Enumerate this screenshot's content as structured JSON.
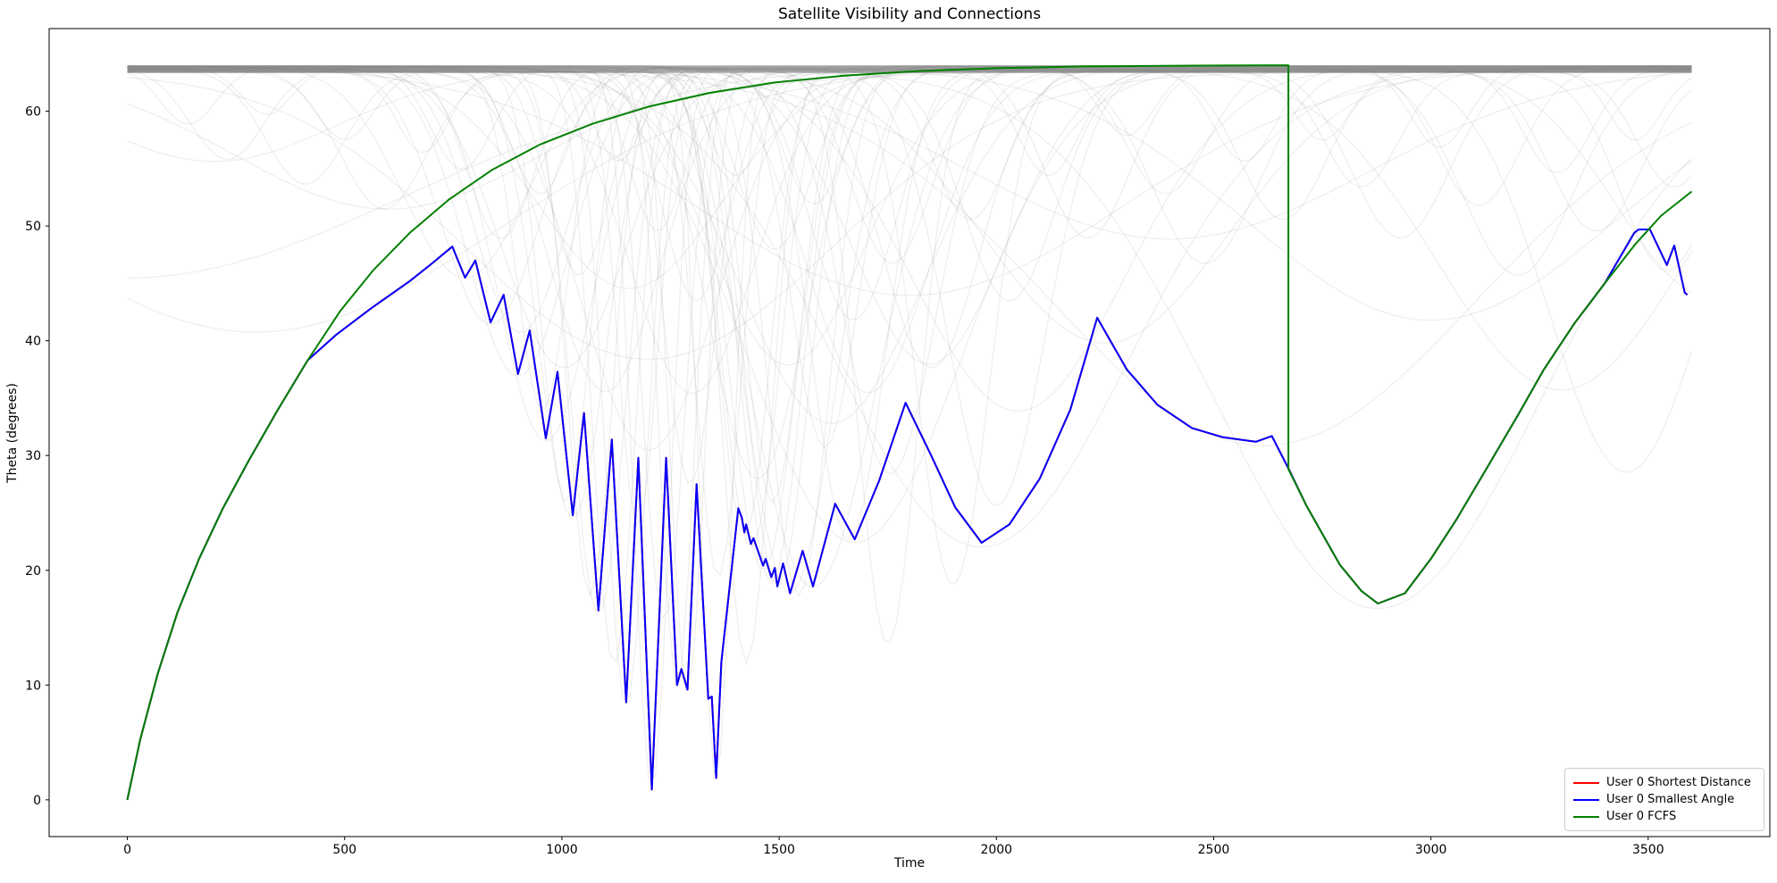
{
  "figure": {
    "title": "Satellite Visibility and Connections"
  },
  "axes": {
    "xlabel": "Time",
    "ylabel": "Theta (degrees)",
    "x_ticks": [
      0,
      500,
      1000,
      1500,
      2000,
      2500,
      3000,
      3500
    ],
    "y_ticks": [
      0,
      10,
      20,
      30,
      40,
      50,
      60
    ],
    "x_range": [
      -180,
      3780
    ],
    "y_range": [
      -3.2,
      67.2
    ]
  },
  "legend": {
    "items": [
      {
        "label": "User 0 Shortest Distance",
        "color": "#ff0000"
      },
      {
        "label": "User 0 Smallest Angle",
        "color": "#0000ff"
      },
      {
        "label": "User 0 FCFS",
        "color": "#008000"
      }
    ]
  },
  "chart_data": {
    "type": "line",
    "title": "Satellite Visibility and Connections",
    "xlabel": "Time",
    "ylabel": "Theta (degrees)",
    "xlim": [
      -180,
      3780
    ],
    "ylim": [
      -3.2,
      67.2
    ],
    "grid": false,
    "legend_position": "lower right",
    "series": [
      {
        "name": "User 0 Shortest Distance",
        "color": "#ff0000",
        "width": 2,
        "points_ref": "User 0 Smallest Angle",
        "note": "coincides exactly with the Smallest Angle curve and is hidden beneath it"
      },
      {
        "name": "User 0 Smallest Angle",
        "color": "#0000ff",
        "width": 2,
        "points": [
          [
            0,
            0
          ],
          [
            30,
            5.3
          ],
          [
            70,
            11
          ],
          [
            115,
            16.3
          ],
          [
            165,
            21
          ],
          [
            220,
            25.4
          ],
          [
            280,
            29.6
          ],
          [
            345,
            33.9
          ],
          [
            415,
            38.3
          ],
          [
            480,
            40.5
          ],
          [
            560,
            42.8
          ],
          [
            650,
            45.2
          ],
          [
            700,
            46.7
          ],
          [
            748,
            48.2
          ],
          [
            777,
            45.5
          ],
          [
            801,
            47.0
          ],
          [
            836,
            41.6
          ],
          [
            866,
            44.0
          ],
          [
            899,
            37.1
          ],
          [
            926,
            40.9
          ],
          [
            963,
            31.5
          ],
          [
            990,
            37.3
          ],
          [
            1025,
            24.8
          ],
          [
            1051,
            33.7
          ],
          [
            1084,
            16.5
          ],
          [
            1115,
            31.4
          ],
          [
            1148,
            8.5
          ],
          [
            1176,
            29.8
          ],
          [
            1207,
            0.9
          ],
          [
            1240,
            29.8
          ],
          [
            1265,
            10.0
          ],
          [
            1275,
            11.4
          ],
          [
            1289,
            9.6
          ],
          [
            1310,
            27.5
          ],
          [
            1337,
            8.8
          ],
          [
            1345,
            9.0
          ],
          [
            1355,
            1.9
          ],
          [
            1367,
            12.0
          ],
          [
            1406,
            25.4
          ],
          [
            1414,
            24.6
          ],
          [
            1420,
            23.3
          ],
          [
            1424,
            24.0
          ],
          [
            1435,
            22.3
          ],
          [
            1441,
            22.8
          ],
          [
            1463,
            20.4
          ],
          [
            1469,
            21.0
          ],
          [
            1482,
            19.4
          ],
          [
            1490,
            20.2
          ],
          [
            1496,
            18.6
          ],
          [
            1509,
            20.6
          ],
          [
            1525,
            18.0
          ],
          [
            1554,
            21.7
          ],
          [
            1578,
            18.6
          ],
          [
            1629,
            25.8
          ],
          [
            1674,
            22.7
          ],
          [
            1730,
            27.8
          ],
          [
            1791,
            34.6
          ],
          [
            1850,
            30.0
          ],
          [
            1905,
            25.5
          ],
          [
            1966,
            22.4
          ],
          [
            2030,
            24.0
          ],
          [
            2100,
            28.0
          ],
          [
            2170,
            34.0
          ],
          [
            2232,
            42.0
          ],
          [
            2300,
            37.5
          ],
          [
            2371,
            34.4
          ],
          [
            2450,
            32.4
          ],
          [
            2520,
            31.6
          ],
          [
            2597,
            31.2
          ],
          [
            2634,
            31.7
          ],
          [
            2673,
            28.8
          ],
          [
            2714,
            25.6
          ],
          [
            2790,
            20.5
          ],
          [
            2840,
            18.2
          ],
          [
            2878,
            17.1
          ],
          [
            2940,
            18.0
          ],
          [
            3000,
            21.0
          ],
          [
            3060,
            24.5
          ],
          [
            3130,
            29.0
          ],
          [
            3200,
            33.5
          ],
          [
            3260,
            37.5
          ],
          [
            3330,
            41.5
          ],
          [
            3400,
            45.0
          ],
          [
            3468,
            49.4
          ],
          [
            3478,
            49.7
          ],
          [
            3504,
            49.7
          ],
          [
            3543,
            46.6
          ],
          [
            3560,
            48.3
          ],
          [
            3584,
            44.2
          ],
          [
            3590,
            44.0
          ]
        ]
      },
      {
        "name": "User 0 FCFS",
        "color": "#008000",
        "width": 2,
        "points": [
          [
            0,
            0
          ],
          [
            30,
            5.3
          ],
          [
            70,
            11
          ],
          [
            115,
            16.3
          ],
          [
            165,
            21
          ],
          [
            220,
            25.4
          ],
          [
            280,
            29.6
          ],
          [
            345,
            33.9
          ],
          [
            415,
            38.3
          ],
          [
            490,
            42.6
          ],
          [
            565,
            46.1
          ],
          [
            650,
            49.4
          ],
          [
            740,
            52.3
          ],
          [
            840,
            54.9
          ],
          [
            950,
            57.1
          ],
          [
            1070,
            58.9
          ],
          [
            1200,
            60.4
          ],
          [
            1340,
            61.6
          ],
          [
            1490,
            62.5
          ],
          [
            1650,
            63.1
          ],
          [
            1820,
            63.5
          ],
          [
            2000,
            63.75
          ],
          [
            2200,
            63.9
          ],
          [
            2450,
            63.97
          ],
          [
            2672,
            64.0
          ],
          [
            2672,
            28.8
          ],
          [
            2714,
            25.6
          ],
          [
            2790,
            20.5
          ],
          [
            2840,
            18.2
          ],
          [
            2878,
            17.1
          ],
          [
            2940,
            18.0
          ],
          [
            3000,
            21.0
          ],
          [
            3060,
            24.5
          ],
          [
            3130,
            29.0
          ],
          [
            3200,
            33.5
          ],
          [
            3260,
            37.5
          ],
          [
            3330,
            41.5
          ],
          [
            3400,
            45.0
          ],
          [
            3470,
            48.4
          ],
          [
            3530,
            50.9
          ],
          [
            3600,
            53.0
          ]
        ]
      }
    ],
    "background_satellites": {
      "description": "light gray satellite visibility curves; theta(t) = ceiling - depth * exp(-((t-center)/width)^2), t in [0,3600]",
      "ceiling": 63.9,
      "color": "rgba(120,120,120,0.12)",
      "line_width": 1.3,
      "curves_center_depth_width": [
        [
          295,
          23.2,
          800
        ],
        [
          777,
          18.4,
          200
        ],
        [
          836,
          22.4,
          160
        ],
        [
          899,
          26.8,
          165
        ],
        [
          963,
          32.4,
          155
        ],
        [
          1025,
          39.1,
          112
        ],
        [
          1084,
          47.4,
          90
        ],
        [
          1148,
          55.4,
          68
        ],
        [
          1207,
          63.0,
          60
        ],
        [
          1265,
          53.9,
          58
        ],
        [
          1289,
          54.3,
          58
        ],
        [
          1355,
          62.0,
          53
        ],
        [
          1420,
          40.6,
          85
        ],
        [
          1435,
          41.6,
          95
        ],
        [
          1463,
          43.5,
          110
        ],
        [
          1482,
          44.5,
          100
        ],
        [
          1496,
          45.3,
          105
        ],
        [
          1525,
          45.9,
          150
        ],
        [
          1578,
          45.3,
          210
        ],
        [
          1674,
          41.3,
          350
        ],
        [
          1966,
          41.6,
          480
        ],
        [
          2615,
          32.7,
          700
        ],
        [
          2878,
          46.8,
          535
        ],
        [
          3543,
          17.3,
          150
        ],
        [
          3640,
          20.1,
          300
        ],
        [
          140,
          5,
          90
        ],
        [
          230,
          8,
          120
        ],
        [
          320,
          4,
          80
        ],
        [
          410,
          10,
          130
        ],
        [
          500,
          6,
          95
        ],
        [
          590,
          12,
          140
        ],
        [
          680,
          7,
          85
        ],
        [
          770,
          9,
          100
        ],
        [
          860,
          15,
          110
        ],
        [
          950,
          11,
          95
        ],
        [
          1040,
          18,
          100
        ],
        [
          1130,
          8,
          80
        ],
        [
          1220,
          14,
          90
        ],
        [
          1310,
          20,
          110
        ],
        [
          1400,
          9,
          85
        ],
        [
          1490,
          16,
          120
        ],
        [
          1580,
          12,
          100
        ],
        [
          1670,
          22,
          140
        ],
        [
          1760,
          17,
          130
        ],
        [
          1850,
          26,
          160
        ],
        [
          1940,
          13,
          120
        ],
        [
          2030,
          20,
          150
        ],
        [
          2120,
          9,
          100
        ],
        [
          2210,
          15,
          140
        ],
        [
          2300,
          6,
          90
        ],
        [
          2390,
          11,
          130
        ],
        [
          2480,
          17,
          170
        ],
        [
          2570,
          8,
          100
        ],
        [
          2660,
          13,
          140
        ],
        [
          2750,
          6,
          90
        ],
        [
          2840,
          10,
          120
        ],
        [
          2930,
          15,
          160
        ],
        [
          3020,
          7,
          95
        ],
        [
          3110,
          12,
          135
        ],
        [
          3200,
          18,
          180
        ],
        [
          3290,
          9,
          110
        ],
        [
          3380,
          14,
          150
        ],
        [
          3470,
          6,
          85
        ],
        [
          3560,
          10,
          120
        ],
        [
          955,
          30,
          85
        ],
        [
          1010,
          38,
          80
        ],
        [
          1065,
          46,
          75
        ],
        [
          1120,
          52,
          70
        ],
        [
          1175,
          40,
          65
        ],
        [
          1235,
          48,
          70
        ],
        [
          1295,
          36,
          85
        ],
        [
          1360,
          44,
          75
        ],
        [
          1425,
          52,
          80
        ],
        [
          1485,
          38,
          90
        ],
        [
          1545,
          46,
          100
        ],
        [
          1605,
          33,
          110
        ],
        [
          1660,
          41,
          120
        ],
        [
          1100,
          28,
          180
        ],
        [
          1200,
          33,
          220
        ],
        [
          1300,
          28,
          200
        ],
        [
          1450,
          36,
          160
        ],
        [
          1520,
          26,
          250
        ],
        [
          1620,
          31,
          300
        ],
        [
          905,
          23,
          150
        ],
        [
          1005,
          26,
          200
        ],
        [
          1155,
          19,
          300
        ],
        [
          1705,
          28,
          200
        ],
        [
          1755,
          35,
          150
        ],
        [
          1845,
          26,
          250
        ],
        [
          2050,
          30,
          350
        ],
        [
          2250,
          24,
          400
        ],
        [
          1900,
          45,
          120
        ],
        [
          2000,
          38,
          160
        ],
        [
          1750,
          50,
          100
        ],
        [
          600,
          12,
          500
        ],
        [
          1200,
          25,
          600
        ],
        [
          1800,
          20,
          700
        ],
        [
          2400,
          15,
          650
        ],
        [
          3000,
          22,
          600
        ],
        [
          3300,
          28,
          400
        ],
        [
          200,
          8,
          400
        ],
        [
          3450,
          35,
          250
        ],
        [
          0,
          18,
          900
        ]
      ]
    }
  }
}
